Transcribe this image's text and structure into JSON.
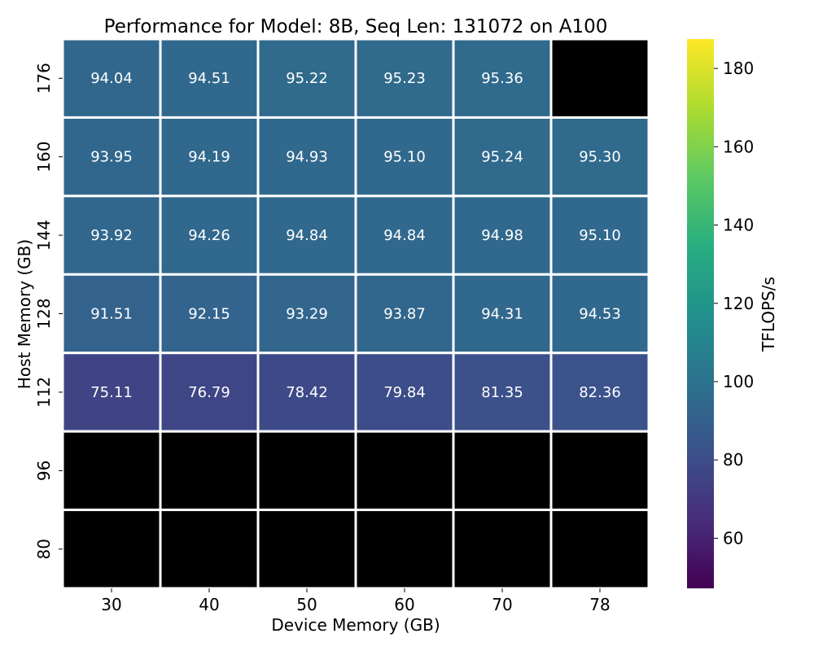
{
  "chart_data": {
    "type": "heatmap",
    "title": "Performance for Model: 8B, Seq Len: 131072 on A100",
    "xlabel": "Device Memory (GB)",
    "ylabel": "Host Memory (GB)",
    "x": [
      "30",
      "40",
      "50",
      "60",
      "70",
      "78"
    ],
    "y": [
      "176",
      "160",
      "144",
      "128",
      "112",
      "96",
      "80"
    ],
    "values": [
      [
        94.04,
        94.51,
        95.22,
        95.23,
        95.36,
        null
      ],
      [
        93.95,
        94.19,
        94.93,
        95.1,
        95.24,
        95.3
      ],
      [
        93.92,
        94.26,
        94.84,
        94.84,
        94.98,
        95.1
      ],
      [
        91.51,
        92.15,
        93.29,
        93.87,
        94.31,
        94.53
      ],
      [
        75.11,
        76.79,
        78.42,
        79.84,
        81.35,
        82.36
      ],
      [
        null,
        null,
        null,
        null,
        null,
        null
      ],
      [
        null,
        null,
        null,
        null,
        null,
        null
      ]
    ],
    "missing_color": "#000000",
    "colormap": "viridis",
    "colorbar": {
      "label": "TFLOPS/s",
      "min": 47.2,
      "max": 187.5,
      "ticks": [
        60,
        80,
        100,
        120,
        140,
        160,
        180
      ]
    },
    "value_format": "2 decimals",
    "cell_separator_color": "#ffffff",
    "annotation_color": "#ffffff",
    "grid": false
  }
}
